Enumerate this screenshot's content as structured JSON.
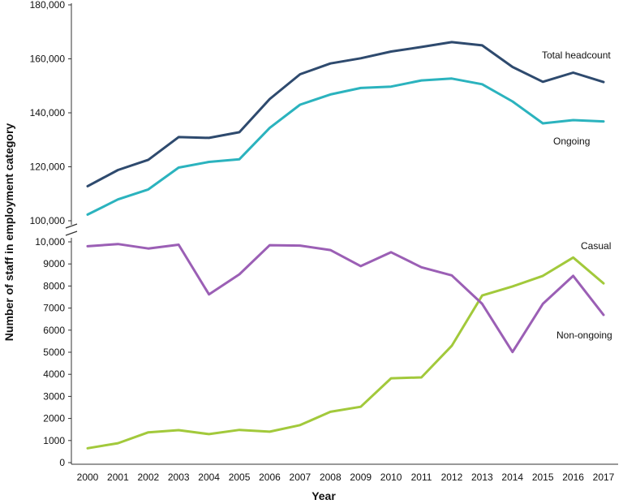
{
  "chart_data": {
    "type": "line",
    "xlabel": "Year",
    "ylabel": "Number of staff in employment category",
    "x": [
      "2000",
      "2001",
      "2002",
      "2003",
      "2004",
      "2005",
      "2006",
      "2007",
      "2008",
      "2009",
      "2010",
      "2011",
      "2012",
      "2013",
      "2014",
      "2015",
      "2016",
      "2017"
    ],
    "panels": [
      {
        "id": "upper",
        "ylim": [
          100000,
          180000
        ],
        "yticks": [
          100000,
          120000,
          140000,
          160000,
          180000
        ],
        "ytick_labels": [
          "100,000",
          "120,000",
          "140,000",
          "160,000",
          "180,000"
        ],
        "series": [
          {
            "name": "Total headcount",
            "color": "#2e4a6e",
            "values": [
              112800,
              118800,
              122600,
              131000,
              130700,
              132800,
              145100,
              154300,
              158300,
              160200,
              162700,
              164400,
              166200,
              165000,
              157000,
              151500,
              154900,
              151400
            ]
          },
          {
            "name": "Ongoing",
            "color": "#2bb3be",
            "values": [
              102300,
              107900,
              111600,
              119700,
              121800,
              122800,
              134400,
              143000,
              146800,
              149200,
              149700,
              152000,
              152700,
              150600,
              144200,
              136100,
              137300,
              136800
            ]
          }
        ]
      },
      {
        "id": "lower",
        "ylim": [
          0,
          10000
        ],
        "yticks": [
          0,
          1000,
          2000,
          3000,
          4000,
          5000,
          6000,
          7000,
          8000,
          9000,
          10000
        ],
        "ytick_labels": [
          "0",
          "1000",
          "2000",
          "3000",
          "4000",
          "5000",
          "6000",
          "7000",
          "8000",
          "9000",
          "10,000"
        ],
        "series": [
          {
            "name": "Casual",
            "color": "#a2c93b",
            "values": [
              650,
              880,
              1370,
              1470,
              1290,
              1480,
              1400,
              1700,
              2300,
              2530,
              3820,
              3860,
              5290,
              7570,
              7980,
              8460,
              9290,
              8120
            ]
          },
          {
            "name": "Non-ongoing",
            "color": "#9b5fb5",
            "values": [
              9800,
              9900,
              9700,
              9870,
              7620,
              8530,
              9850,
              9830,
              9630,
              8900,
              9530,
              8850,
              8480,
              7190,
              5010,
              7190,
              8460,
              6690
            ]
          }
        ]
      }
    ]
  }
}
